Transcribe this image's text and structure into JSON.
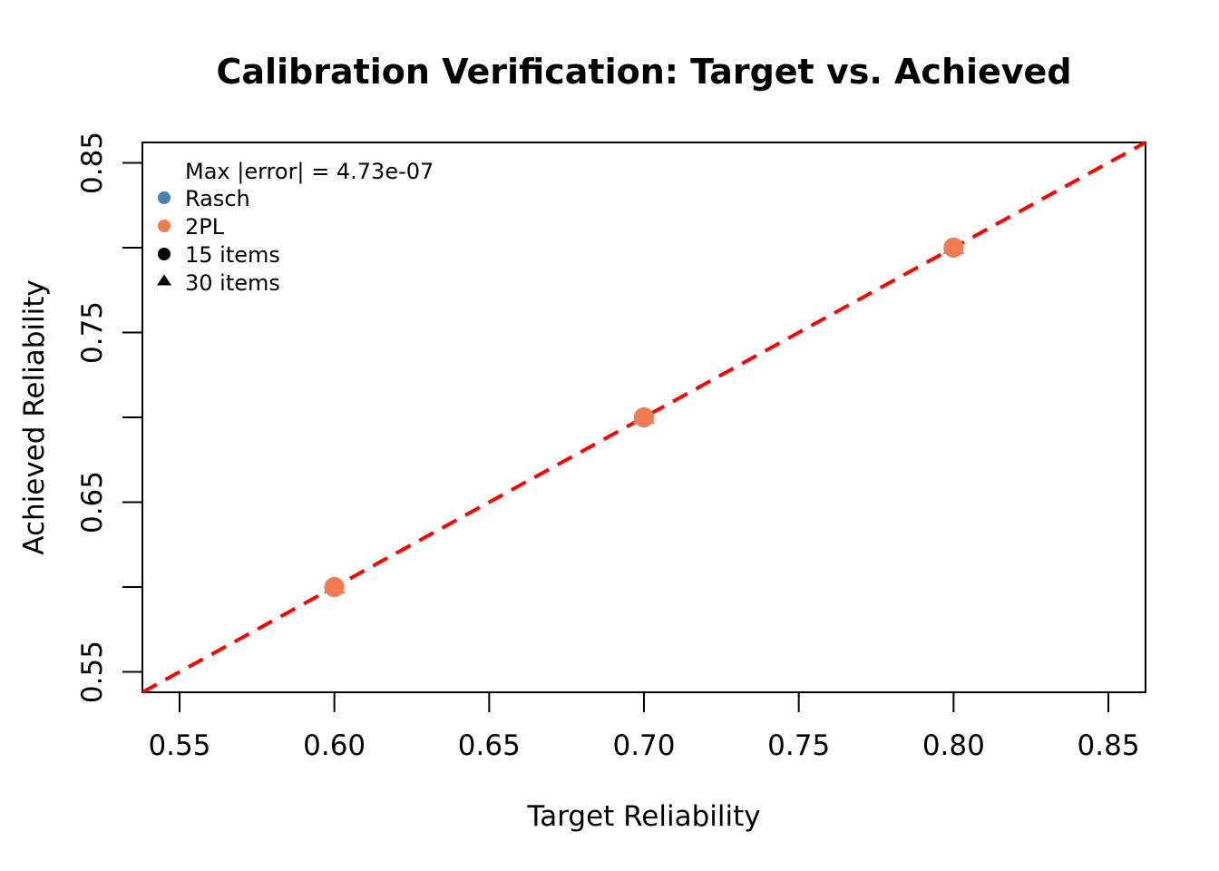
{
  "chart_data": {
    "type": "scatter",
    "title": "Calibration Verification: Target vs. Achieved",
    "xlabel": "Target Reliability",
    "ylabel": "Achieved Reliability",
    "xlim": [
      0.538,
      0.862
    ],
    "ylim": [
      0.538,
      0.862
    ],
    "x_ticks": [
      0.55,
      0.6,
      0.65,
      0.7,
      0.75,
      0.8,
      0.85
    ],
    "x_tick_labels": [
      "0.55",
      "0.60",
      "0.65",
      "0.70",
      "0.75",
      "0.80",
      "0.85"
    ],
    "y_ticks": [
      0.55,
      0.6,
      0.65,
      0.7,
      0.75,
      0.8,
      0.85
    ],
    "y_tick_labels": [
      "0.55",
      "",
      "0.65",
      "",
      "0.75",
      "",
      "0.85"
    ],
    "grid": false,
    "legend_placement": "top-left",
    "reference_line": {
      "slope": 1,
      "intercept": 0,
      "style": "dashed",
      "color": "#ff0000"
    },
    "series": [
      {
        "name": "Rasch",
        "marker": "circle",
        "color": "#4682b4",
        "points": [
          [
            0.6,
            0.6
          ],
          [
            0.7,
            0.7
          ],
          [
            0.8,
            0.8
          ]
        ]
      },
      {
        "name": "2PL",
        "marker": "circle",
        "color": "#f47b50",
        "points": [
          [
            0.6,
            0.6
          ],
          [
            0.7,
            0.7
          ],
          [
            0.8,
            0.8
          ]
        ]
      },
      {
        "name": "Rasch",
        "marker": "triangle",
        "color": "#4682b4",
        "points": [
          [
            0.6,
            0.6
          ],
          [
            0.7,
            0.7
          ],
          [
            0.8,
            0.8
          ]
        ]
      },
      {
        "name": "2PL",
        "marker": "triangle",
        "color": "#f47b50",
        "points": [
          [
            0.6,
            0.6
          ],
          [
            0.7,
            0.7
          ],
          [
            0.8,
            0.8
          ]
        ]
      }
    ],
    "legend": {
      "annotation": "Max |error| = 4.73e-07",
      "entries": [
        {
          "label": "Rasch",
          "marker": "circle",
          "color": "#4682b4"
        },
        {
          "label": "2PL",
          "marker": "circle",
          "color": "#f47b50"
        },
        {
          "label": "15 items",
          "marker": "circle",
          "color": "#000000"
        },
        {
          "label": "30 items",
          "marker": "triangle",
          "color": "#000000"
        }
      ]
    }
  }
}
